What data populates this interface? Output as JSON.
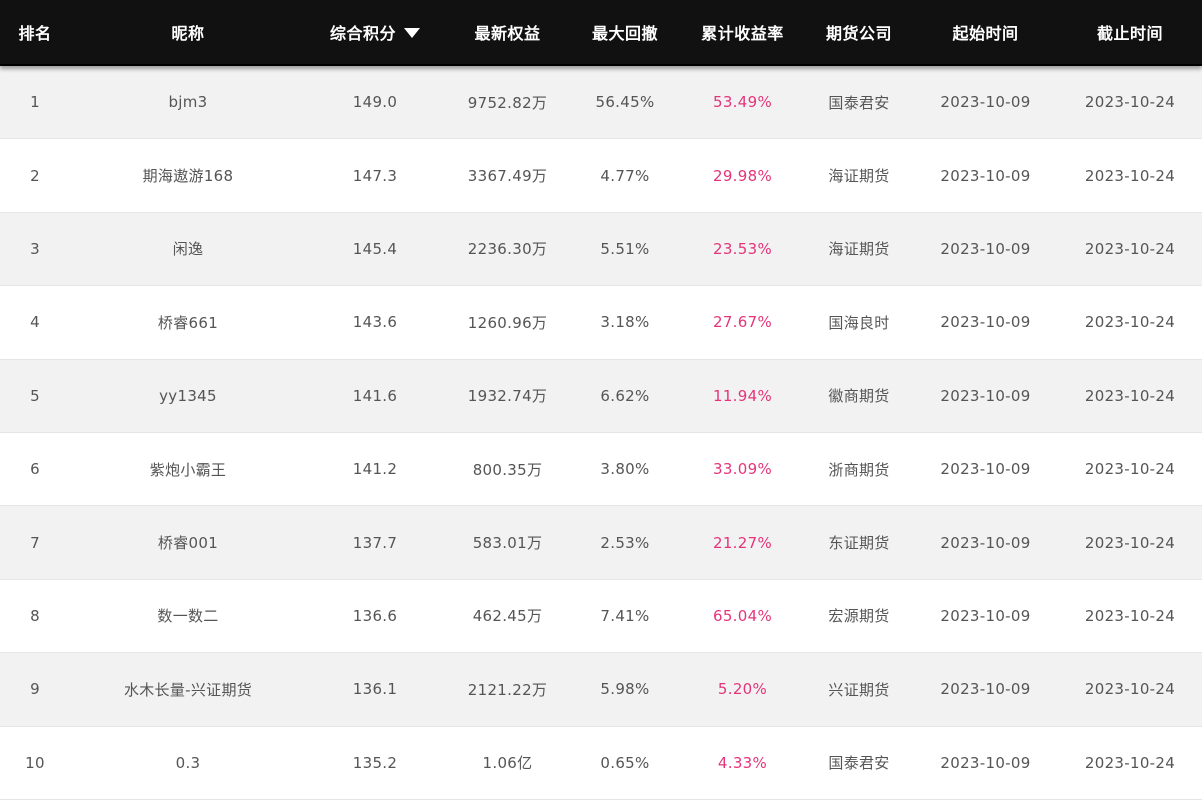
{
  "headers": {
    "rank": "排名",
    "nickname": "昵称",
    "score": "综合积分",
    "equity": "最新权益",
    "drawdown": "最大回撤",
    "return_rate": "累计收益率",
    "company": "期货公司",
    "start": "起始时间",
    "end": "截止时间"
  },
  "sort": {
    "column": "score",
    "direction": "desc",
    "icon": "caret-down-icon"
  },
  "colors": {
    "header_bg": "#111111",
    "rate": "#e4357a",
    "row_alt": "#f2f2f2"
  },
  "rows": [
    {
      "rank": "1",
      "nickname": "bjm3",
      "score": "149.0",
      "equity": "9752.82万",
      "drawdown": "56.45%",
      "return_rate": "53.49%",
      "company": "国泰君安",
      "start": "2023-10-09",
      "end": "2023-10-24"
    },
    {
      "rank": "2",
      "nickname": "期海遨游168",
      "score": "147.3",
      "equity": "3367.49万",
      "drawdown": "4.77%",
      "return_rate": "29.98%",
      "company": "海证期货",
      "start": "2023-10-09",
      "end": "2023-10-24"
    },
    {
      "rank": "3",
      "nickname": "闲逸",
      "score": "145.4",
      "equity": "2236.30万",
      "drawdown": "5.51%",
      "return_rate": "23.53%",
      "company": "海证期货",
      "start": "2023-10-09",
      "end": "2023-10-24"
    },
    {
      "rank": "4",
      "nickname": "桥睿661",
      "score": "143.6",
      "equity": "1260.96万",
      "drawdown": "3.18%",
      "return_rate": "27.67%",
      "company": "国海良时",
      "start": "2023-10-09",
      "end": "2023-10-24"
    },
    {
      "rank": "5",
      "nickname": "yy1345",
      "score": "141.6",
      "equity": "1932.74万",
      "drawdown": "6.62%",
      "return_rate": "11.94%",
      "company": "徽商期货",
      "start": "2023-10-09",
      "end": "2023-10-24"
    },
    {
      "rank": "6",
      "nickname": "紫炮小霸王",
      "score": "141.2",
      "equity": "800.35万",
      "drawdown": "3.80%",
      "return_rate": "33.09%",
      "company": "浙商期货",
      "start": "2023-10-09",
      "end": "2023-10-24"
    },
    {
      "rank": "7",
      "nickname": "桥睿001",
      "score": "137.7",
      "equity": "583.01万",
      "drawdown": "2.53%",
      "return_rate": "21.27%",
      "company": "东证期货",
      "start": "2023-10-09",
      "end": "2023-10-24"
    },
    {
      "rank": "8",
      "nickname": "数一数二",
      "score": "136.6",
      "equity": "462.45万",
      "drawdown": "7.41%",
      "return_rate": "65.04%",
      "company": "宏源期货",
      "start": "2023-10-09",
      "end": "2023-10-24"
    },
    {
      "rank": "9",
      "nickname": "水木长量-兴证期货",
      "score": "136.1",
      "equity": "2121.22万",
      "drawdown": "5.98%",
      "return_rate": "5.20%",
      "company": "兴证期货",
      "start": "2023-10-09",
      "end": "2023-10-24"
    },
    {
      "rank": "10",
      "nickname": "0.3",
      "score": "135.2",
      "equity": "1.06亿",
      "drawdown": "0.65%",
      "return_rate": "4.33%",
      "company": "国泰君安",
      "start": "2023-10-09",
      "end": "2023-10-24"
    }
  ]
}
